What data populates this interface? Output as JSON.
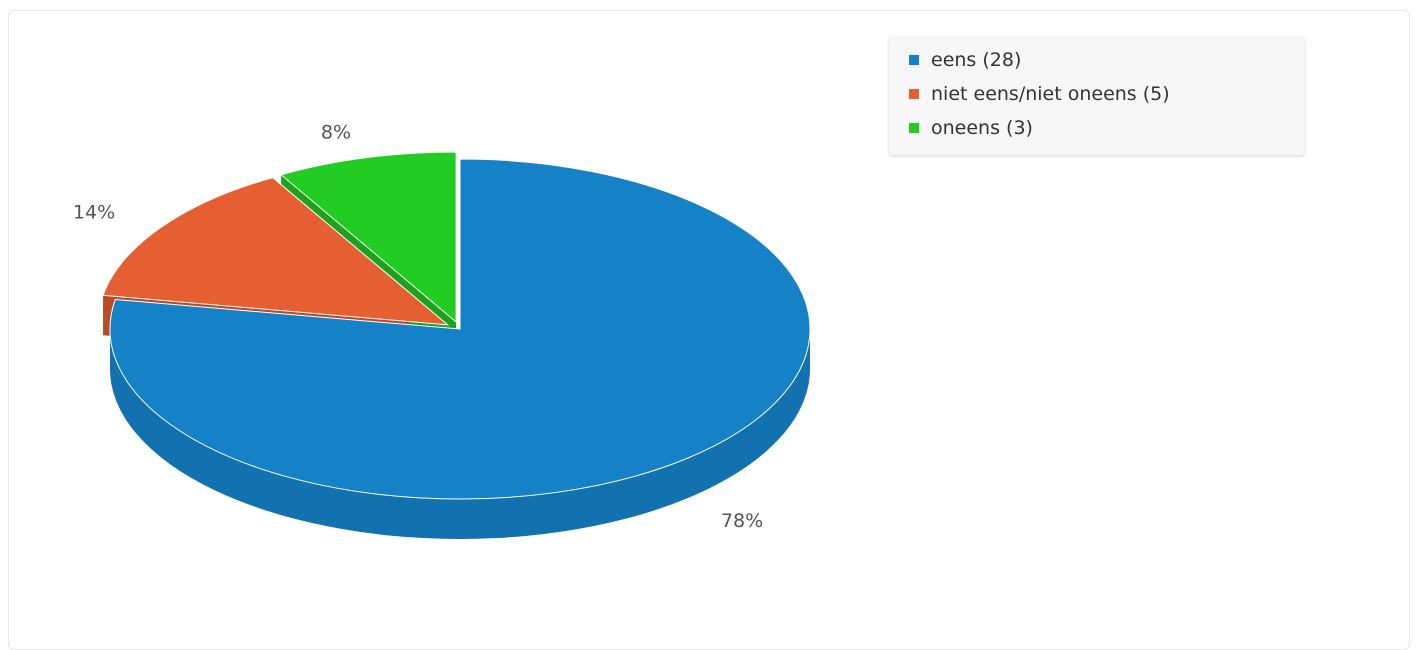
{
  "chart_data": {
    "type": "pie",
    "style": "3d",
    "categories": [
      "eens",
      "niet eens/niet oneens",
      "oneens"
    ],
    "values": [
      28,
      5,
      3
    ],
    "percent_labels": [
      "78%",
      "14%",
      "8%"
    ],
    "colors": [
      "#1582c8",
      "#e65f33",
      "#22cc22"
    ],
    "legend": {
      "placement": "top-right",
      "entries": [
        "eens (28)",
        "niet eens/niet oneens (5)",
        "oneens (3)"
      ]
    },
    "exploded": [
      "niet eens/niet oneens",
      "oneens"
    ]
  }
}
